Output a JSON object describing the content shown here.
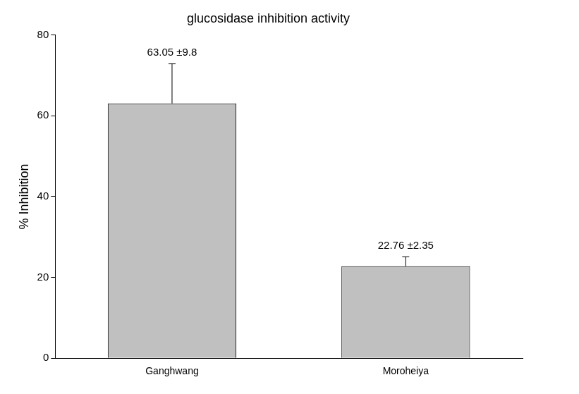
{
  "chart_data": {
    "type": "bar",
    "title": "glucosidase inhibition activity",
    "y_label": "% Inhibition",
    "categories": [
      "Ganghwang",
      "Moroheiya"
    ],
    "values": [
      63.05,
      22.76
    ],
    "errors": [
      9.8,
      2.35
    ],
    "value_labels": [
      "63.05 ±9.8",
      "22.76 ±2.35"
    ],
    "data_labels": true,
    "color": "#c0c0c0",
    "ylim": [
      0,
      80
    ],
    "yticks": [
      0,
      20,
      40,
      60,
      80
    ],
    "grid": false
  }
}
